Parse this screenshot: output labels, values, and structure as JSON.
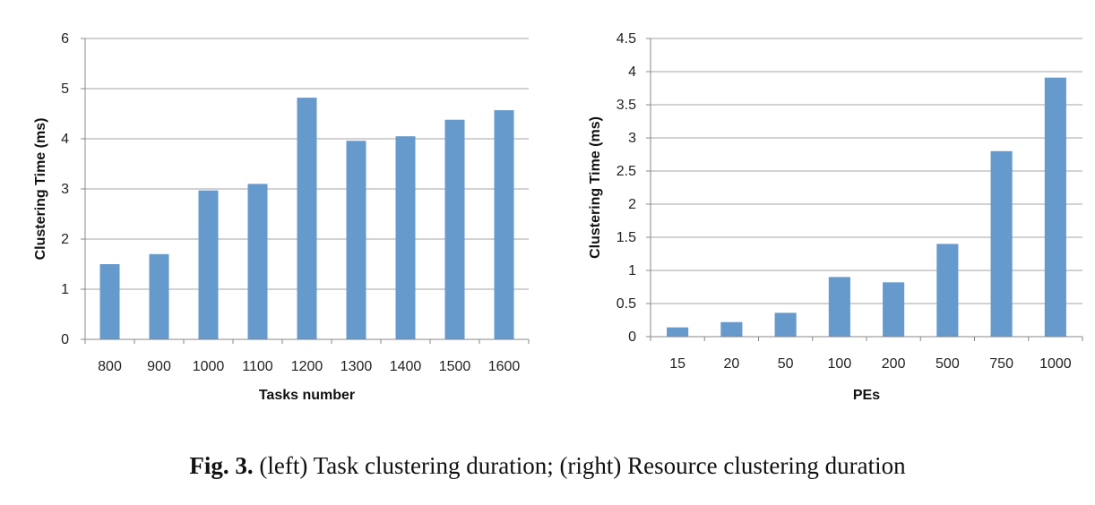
{
  "chart_data": [
    {
      "type": "bar",
      "categories": [
        "800",
        "900",
        "1000",
        "1100",
        "1200",
        "1300",
        "1400",
        "1500",
        "1600"
      ],
      "values": [
        1.5,
        1.7,
        2.97,
        3.1,
        4.82,
        3.96,
        4.05,
        4.38,
        4.57
      ],
      "xlabel": "Tasks number",
      "ylabel": "Clustering Time (ms)",
      "ylim": [
        0,
        6
      ],
      "yticks": [
        "0",
        "1",
        "2",
        "3",
        "4",
        "5",
        "6"
      ],
      "grid": true,
      "bar_color": "#6699cc"
    },
    {
      "type": "bar",
      "categories": [
        "15",
        "20",
        "50",
        "100",
        "200",
        "500",
        "750",
        "1000"
      ],
      "values": [
        0.14,
        0.22,
        0.36,
        0.9,
        0.82,
        1.4,
        2.8,
        3.91
      ],
      "xlabel": "PEs",
      "ylabel": "Clustering Time (ms)",
      "ylim": [
        0,
        4.5
      ],
      "yticks": [
        "0",
        "0.5",
        "1",
        "1.5",
        "2",
        "2.5",
        "3",
        "3.5",
        "4",
        "4.5"
      ],
      "grid": true,
      "bar_color": "#6699cc"
    }
  ],
  "caption": {
    "label": "Fig. 3.",
    "text": " (left) Task clustering duration; (right) Resource clustering duration"
  }
}
